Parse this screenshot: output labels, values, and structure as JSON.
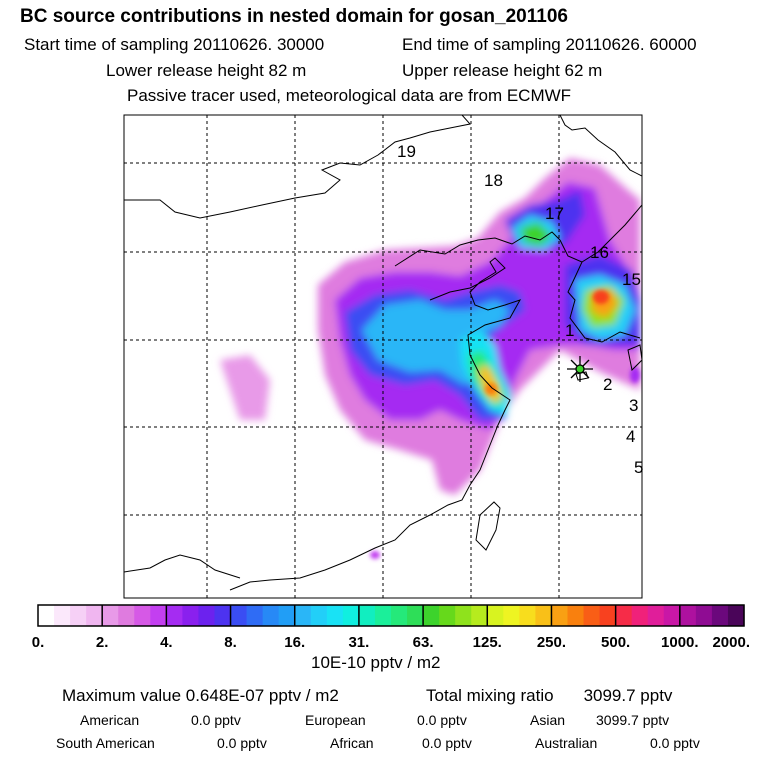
{
  "header": {
    "title": "BC  source contributions in nested domain for gosan_201106",
    "start": "Start time of sampling 20110626. 30000",
    "end": "End time of sampling 20110626. 60000",
    "lower": "Lower release height   82 m",
    "upper": "Upper release height   62 m",
    "tracer": "Passive tracer used, meteorological data are from ECMWF"
  },
  "chart_data": {
    "type": "heatmap",
    "title": "BC  source contributions in nested domain for gosan_201106",
    "map_labels": [
      "19",
      "18",
      "17",
      "16",
      "15",
      "1",
      "2",
      "3",
      "4",
      "5"
    ],
    "legend": {
      "tick_labels": [
        "0.",
        "2.",
        "4.",
        "8.",
        "16.",
        "31.",
        "63.",
        "125.",
        "250.",
        "500.",
        "1000.",
        "2000."
      ],
      "unit": "10E-10 pptv / m2",
      "colors": [
        "#ffffff",
        "#fbe8fb",
        "#f6d0f6",
        "#f0b6f0",
        "#e89ae8",
        "#df7bdf",
        "#d659e6",
        "#c33ff0",
        "#a52cf2",
        "#8a20ee",
        "#6c22ee",
        "#4d33f0",
        "#3a4df3",
        "#2f6cf5",
        "#2789f6",
        "#219ef6",
        "#2ab6f7",
        "#22cff8",
        "#19e2f5",
        "#10efe0",
        "#11eec0",
        "#1bef9a",
        "#25e97a",
        "#2ede58",
        "#3dd32c",
        "#66d91b",
        "#8fe21c",
        "#b6eb1e",
        "#d8f320",
        "#eef422",
        "#f8dd1d",
        "#f9c018",
        "#f9a013",
        "#f9800e",
        "#f95e16",
        "#f8411f",
        "#f62c48",
        "#f0217a",
        "#e01e9a",
        "#c917a6",
        "#ae119f",
        "#8f0c93",
        "#6b087c",
        "#4a0559"
      ]
    },
    "max_label": "Maximum value  0.648E-07 pptv / m2",
    "total_label": "Total mixing ratio",
    "total_value": "3099.7 pptv",
    "regions": [
      {
        "name": "American",
        "value": "0.0 pptv"
      },
      {
        "name": "European",
        "value": "0.0 pptv"
      },
      {
        "name": "Asian",
        "value": "3099.7 pptv"
      },
      {
        "name": "South American",
        "value": "0.0 pptv"
      },
      {
        "name": "African",
        "value": "0.0 pptv"
      },
      {
        "name": "Australian",
        "value": "0.0 pptv"
      }
    ]
  }
}
